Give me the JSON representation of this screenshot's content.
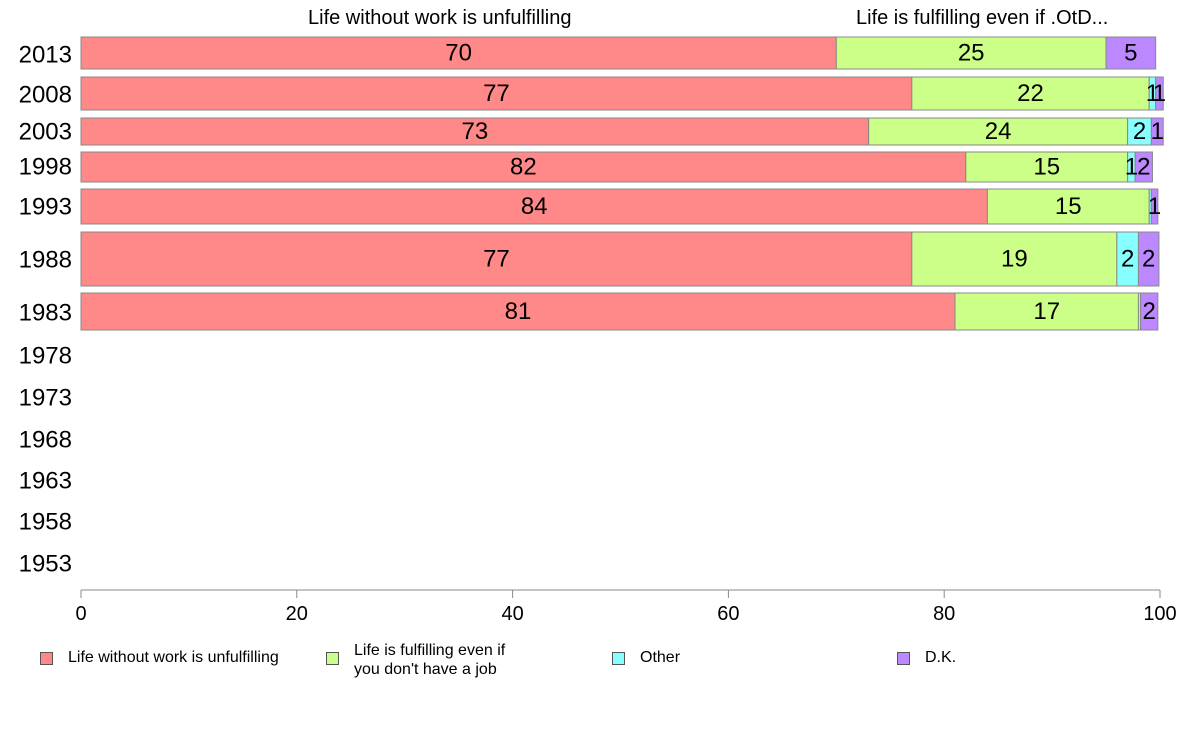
{
  "chart_data": {
    "type": "bar",
    "orientation": "horizontal",
    "stacked": true,
    "categories": [
      "2013",
      "2008",
      "2003",
      "1998",
      "1993",
      "1988",
      "1983",
      "1978",
      "1973",
      "1968",
      "1963",
      "1958",
      "1953"
    ],
    "series": [
      {
        "name": "Life without work is unfulfilling",
        "color": "#ff8888",
        "values": [
          70,
          77,
          73,
          82,
          84,
          77,
          81,
          null,
          null,
          null,
          null,
          null,
          null
        ],
        "labels": [
          "70",
          "77",
          "73",
          "82",
          "84",
          "77",
          "81",
          "",
          "",
          "",
          "",
          "",
          ""
        ]
      },
      {
        "name": "Life is fulfilling even if you don't have a job",
        "color": "#ccff88",
        "values": [
          25,
          22,
          24,
          15,
          15,
          19,
          17,
          null,
          null,
          null,
          null,
          null,
          null
        ],
        "labels": [
          "25",
          "22",
          "24",
          "15",
          "15",
          "19",
          "17",
          "",
          "",
          "",
          "",
          "",
          ""
        ]
      },
      {
        "name": "Other",
        "color": "#88ffff",
        "values": [
          0,
          0.6,
          2.2,
          0.7,
          0.2,
          2,
          0.2,
          null,
          null,
          null,
          null,
          null,
          null
        ],
        "labels": [
          "",
          "1",
          "2",
          "1",
          "",
          "2",
          "",
          "",
          "",
          "",
          "",
          "",
          ""
        ]
      },
      {
        "name": "D.K.",
        "color": "#bb88ff",
        "values": [
          4.6,
          0.7,
          1.1,
          1.6,
          0.6,
          1.9,
          1.6,
          null,
          null,
          null,
          null,
          null,
          null
        ],
        "labels": [
          "5",
          "1",
          "1",
          "2",
          "1",
          "2",
          "2",
          "",
          "",
          "",
          "",
          "",
          ""
        ]
      }
    ],
    "xlim": [
      0,
      100
    ],
    "xticks": [
      "0",
      "20",
      "40",
      "60",
      "80",
      "100"
    ],
    "top_labels": [
      "Life without work is unfulfilling",
      "Life is fulfilling even if .OtD..."
    ],
    "legend": {
      "position": "bottom",
      "entries": [
        "Life without work is unfulfilling",
        "Life is fulfilling even if\nyou don't have a job",
        "Other",
        "D.K."
      ]
    },
    "grid": false
  }
}
